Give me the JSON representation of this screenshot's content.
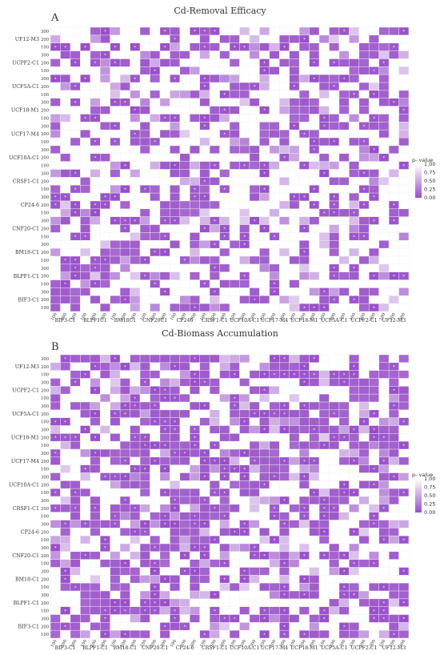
{
  "figure": {
    "panels": [
      {
        "letter": "A",
        "title": "Cd-Removal Efficacy"
      },
      {
        "letter": "B",
        "title": "Cd-Biomass Accumulation"
      }
    ],
    "legend": {
      "title": "p- value",
      "ticks": [
        "1.00",
        "0.75",
        "0.50",
        "0.25",
        "0.00"
      ]
    }
  },
  "chart_data": [
    {
      "type": "heatmap",
      "title": "Cd-Removal Efficacy",
      "panel": "A",
      "x_groups": [
        "BIF3-C1",
        "BLPF1C1",
        "BM18C1",
        "CNF20C1",
        "CP246",
        "CRSF1-C1",
        "UCF10A-C1",
        "UCF17-M4",
        "UCF18-M1",
        "UCF5A-C1",
        "UCPF2-C1",
        "UF12-M3"
      ],
      "y_groups": [
        "UF12-M3",
        "UCPF2-C1",
        "UCF5A-C1",
        "UCF18-M1",
        "UCF17-M4",
        "UCF10A-C1",
        "CRSF1-C1",
        "CP24-6",
        "CNF20-C1",
        "BM18-C1",
        "BLPF1-C1",
        "BIF3-C1"
      ],
      "levels_x": [
        "100",
        "200",
        "300"
      ],
      "levels_y": [
        "300",
        "200",
        "100"
      ],
      "value_label": "p- value",
      "value_range": [
        0,
        1
      ],
      "significance_marker": "*",
      "cells": "p-values per cell pairing (concentration x strain); darker purple = lower p-value; * marks significant cells"
    },
    {
      "type": "heatmap",
      "title": "Cd-Biomass Accumulation",
      "panel": "B",
      "x_groups": [
        "BIF3-C1",
        "BLPF1-C1",
        "BM18-C1",
        "CNF20-C1",
        "CP24-6",
        "CRSF1-C1",
        "UCF10A-C1",
        "UCF17-M4",
        "UCF18-M1",
        "UCF5A-C1",
        "UCPF2-C1",
        "UF12-M3"
      ],
      "y_groups": [
        "UF12-M3",
        "UCPF2-C1",
        "UCF5A-C1",
        "UCF18-M1",
        "UCF17-M4",
        "UCF10A-C1",
        "CRSF1-C1",
        "CP24-6",
        "CNF20-C1",
        "BM18-C1",
        "BLPF1-C1",
        "BIF3-C1"
      ],
      "levels_x": [
        "100",
        "200",
        "300"
      ],
      "levels_y": [
        "300",
        "200",
        "100"
      ],
      "value_label": "p- value",
      "value_range": [
        0,
        1
      ],
      "significance_marker": "*",
      "cells": "p-values per cell pairing (concentration x strain); darker purple = lower p-value; * marks significant cells"
    }
  ]
}
